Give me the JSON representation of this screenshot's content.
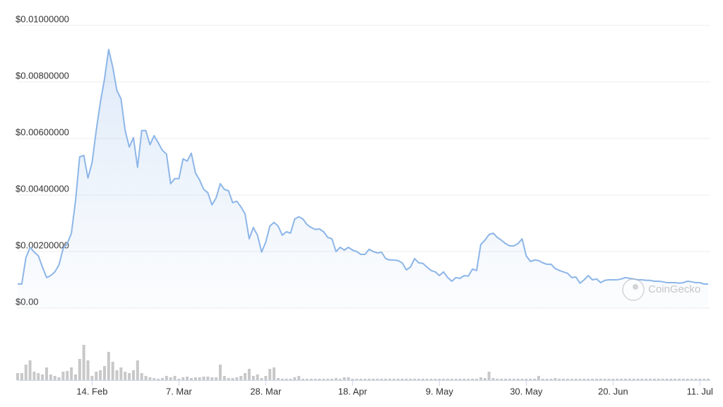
{
  "chart_data": {
    "type": "line",
    "color": "#8db6e8",
    "watermark": "CoinGecko",
    "ylim": [
      0,
      0.01
    ],
    "yticks": [
      {
        "value": 0,
        "label": "$0.00"
      },
      {
        "value": 0.002,
        "label": "$0.00200000"
      },
      {
        "value": 0.004,
        "label": "$0.00400000"
      },
      {
        "value": 0.006,
        "label": "$0.00600000"
      },
      {
        "value": 0.008,
        "label": "$0.00800000"
      },
      {
        "value": 0.01,
        "label": "$0.01000000"
      }
    ],
    "grid": true,
    "xticks": [
      "14. Feb",
      "7. Mar",
      "28. Mar",
      "18. Apr",
      "9. May",
      "30. May",
      "20. Jun",
      "11. Jul"
    ],
    "x": [
      "27. Jan",
      "28. Jan",
      "29. Jan",
      "30. Jan",
      "31. Jan",
      "1. Feb",
      "2. Feb",
      "3. Feb",
      "4. Feb",
      "5. Feb",
      "6. Feb",
      "7. Feb",
      "8. Feb",
      "9. Feb",
      "10. Feb",
      "11. Feb",
      "12. Feb",
      "13. Feb",
      "14. Feb",
      "15. Feb",
      "16. Feb",
      "17. Feb",
      "18. Feb",
      "19. Feb",
      "20. Feb",
      "21. Feb",
      "22. Feb",
      "23. Feb",
      "24. Feb",
      "25. Feb",
      "26. Feb",
      "27. Feb",
      "28. Feb",
      "1. Mar",
      "2. Mar",
      "3. Mar",
      "4. Mar",
      "5. Mar",
      "6. Mar",
      "7. Mar",
      "8. Mar",
      "9. Mar",
      "10. Mar",
      "11. Mar",
      "12. Mar",
      "13. Mar",
      "14. Mar",
      "15. Mar",
      "16. Mar",
      "17. Mar",
      "18. Mar",
      "19. Mar",
      "20. Mar",
      "21. Mar",
      "22. Mar",
      "23. Mar",
      "24. Mar",
      "25. Mar",
      "26. Mar",
      "27. Mar",
      "28. Mar",
      "29. Mar",
      "30. Mar",
      "31. Mar",
      "1. Apr",
      "2. Apr",
      "3. Apr",
      "4. Apr",
      "5. Apr",
      "6. Apr",
      "7. Apr",
      "8. Apr",
      "9. Apr",
      "10. Apr",
      "11. Apr",
      "12. Apr",
      "13. Apr",
      "14. Apr",
      "15. Apr",
      "16. Apr",
      "17. Apr",
      "18. Apr",
      "19. Apr",
      "20. Apr",
      "21. Apr",
      "22. Apr",
      "23. Apr",
      "24. Apr",
      "25. Apr",
      "26. Apr",
      "27. Apr",
      "28. Apr",
      "29. Apr",
      "30. Apr",
      "1. May",
      "2. May",
      "3. May",
      "4. May",
      "5. May",
      "6. May",
      "7. May",
      "8. May",
      "9. May",
      "10. May",
      "11. May",
      "12. May",
      "13. May",
      "14. May",
      "15. May",
      "16. May",
      "17. May",
      "18. May",
      "19. May",
      "20. May",
      "21. May",
      "22. May",
      "23. May",
      "24. May",
      "25. May",
      "26. May",
      "27. May",
      "28. May",
      "29. May",
      "30. May",
      "31. May",
      "1. Jun",
      "2. Jun",
      "3. Jun",
      "4. Jun",
      "5. Jun",
      "6. Jun",
      "7. Jun",
      "8. Jun",
      "9. Jun",
      "10. Jun",
      "11. Jun",
      "12. Jun",
      "13. Jun",
      "14. Jun",
      "15. Jun",
      "16. Jun",
      "17. Jun",
      "18. Jun",
      "19. Jun",
      "20. Jun",
      "21. Jun",
      "22. Jun",
      "23. Jun",
      "24. Jun",
      "25. Jun",
      "26. Jun",
      "27. Jun",
      "28. Jun",
      "29. Jun",
      "30. Jun",
      "1. Jul",
      "2. Jul",
      "3. Jul",
      "4. Jul",
      "5. Jul",
      "6. Jul",
      "7. Jul",
      "8. Jul",
      "9. Jul",
      "10. Jul",
      "11. Jul",
      "12. Jul",
      "13. Jul"
    ],
    "values": [
      0.00085,
      0.00085,
      0.00178,
      0.00215,
      0.00198,
      0.00185,
      0.00145,
      0.00108,
      0.00115,
      0.00128,
      0.00153,
      0.0021,
      0.00228,
      0.00265,
      0.0038,
      0.00535,
      0.0054,
      0.0046,
      0.00515,
      0.00628,
      0.00728,
      0.0081,
      0.00915,
      0.00853,
      0.0077,
      0.0074,
      0.00628,
      0.0057,
      0.00603,
      0.00498,
      0.00628,
      0.00628,
      0.00578,
      0.0061,
      0.00585,
      0.00558,
      0.00545,
      0.0044,
      0.00458,
      0.00458,
      0.00528,
      0.0052,
      0.00548,
      0.00478,
      0.00453,
      0.0042,
      0.00408,
      0.00365,
      0.0039,
      0.0044,
      0.0042,
      0.00415,
      0.00373,
      0.00378,
      0.00358,
      0.00333,
      0.00245,
      0.00285,
      0.00258,
      0.00198,
      0.00233,
      0.0029,
      0.00303,
      0.0029,
      0.00258,
      0.0027,
      0.00265,
      0.00315,
      0.00323,
      0.00315,
      0.00295,
      0.00285,
      0.00278,
      0.0028,
      0.0027,
      0.0025,
      0.00245,
      0.002,
      0.00215,
      0.00205,
      0.00215,
      0.00205,
      0.002,
      0.0019,
      0.0019,
      0.00208,
      0.002,
      0.00195,
      0.00198,
      0.00175,
      0.0017,
      0.0017,
      0.00168,
      0.0016,
      0.00135,
      0.00145,
      0.00175,
      0.0016,
      0.00158,
      0.00145,
      0.00133,
      0.00128,
      0.00115,
      0.00128,
      0.00108,
      0.00095,
      0.00108,
      0.00105,
      0.00115,
      0.00113,
      0.00138,
      0.00133,
      0.00225,
      0.0024,
      0.0026,
      0.00265,
      0.0025,
      0.0024,
      0.00228,
      0.0022,
      0.0022,
      0.00228,
      0.00245,
      0.00185,
      0.00165,
      0.0017,
      0.00168,
      0.0016,
      0.00155,
      0.00155,
      0.0014,
      0.00133,
      0.00128,
      0.00123,
      0.00108,
      0.0011,
      0.00088,
      0.001,
      0.00115,
      0.001,
      0.00103,
      0.0009,
      0.00098,
      0.001,
      0.001,
      0.001,
      0.00103,
      0.00108,
      0.00105,
      0.00103,
      0.001,
      0.001,
      0.00098,
      0.00098,
      0.00095,
      0.00095,
      0.00093,
      0.0009,
      0.0009,
      0.0009,
      0.00088,
      0.0009,
      0.00095,
      0.00093,
      0.0009,
      0.0009,
      0.00085,
      0.00085
    ],
    "volume": {
      "color": "#c8c8c8",
      "values": [
        10,
        10,
        22,
        28,
        12,
        10,
        8,
        18,
        8,
        6,
        4,
        12,
        13,
        18,
        8,
        30,
        50,
        28,
        6,
        12,
        14,
        20,
        40,
        26,
        14,
        18,
        12,
        10,
        14,
        28,
        10,
        6,
        4,
        3,
        2,
        3,
        6,
        4,
        6,
        2,
        4,
        5,
        3,
        4,
        4,
        5,
        5,
        4,
        4,
        22,
        6,
        3,
        3,
        4,
        6,
        10,
        16,
        6,
        8,
        3,
        6,
        16,
        18,
        3,
        2,
        2,
        2,
        4,
        6,
        2,
        2,
        2,
        2,
        2,
        2,
        2,
        2,
        3,
        2,
        4,
        4,
        2,
        2,
        2,
        2,
        2,
        2,
        2,
        2,
        2,
        2,
        2,
        2,
        2,
        2,
        2,
        2,
        2,
        2,
        2,
        2,
        2,
        2,
        2,
        2,
        2,
        2,
        2,
        2,
        2,
        2,
        2,
        4,
        3,
        12,
        3,
        2,
        2,
        2,
        2,
        2,
        2,
        2,
        2,
        2,
        2,
        6,
        2,
        2,
        2,
        3,
        2,
        2,
        2,
        2,
        2,
        2,
        2,
        2,
        2,
        2,
        2,
        2,
        2,
        2,
        2,
        2,
        2,
        2,
        2,
        2,
        2,
        2,
        2,
        2,
        2,
        2,
        2,
        2,
        2,
        2,
        2,
        2,
        2,
        2,
        2,
        2,
        2
      ]
    }
  }
}
